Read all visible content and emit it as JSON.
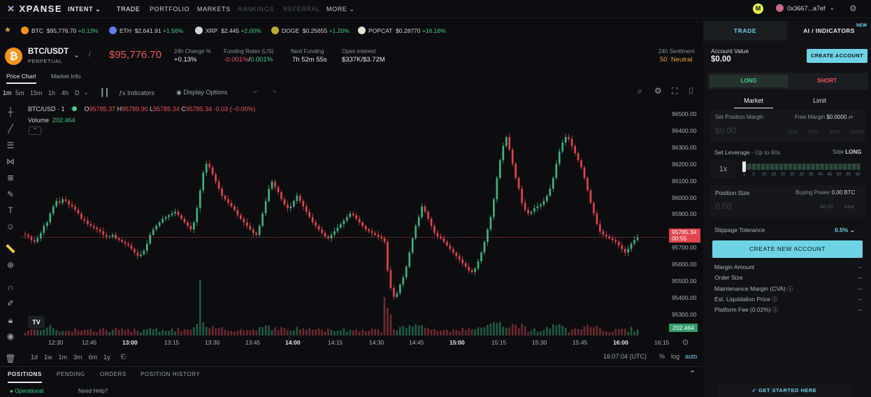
{
  "nav": {
    "logo": "XPANSE",
    "intent": "INTENT",
    "items": [
      "TRADE",
      "PORTFOLIO",
      "MARKETS",
      "RANKINGS",
      "REFERRAL",
      "MORE"
    ],
    "wallet": "0x3667...a7ef",
    "avatar_letter": "M"
  },
  "ticker": [
    {
      "sym": "BTC",
      "price": "$95,776.70",
      "chg": "+0.13%",
      "color": "#f7931a"
    },
    {
      "sym": "ETH",
      "price": "$2,641.91",
      "chg": "+1.56%",
      "color": "#627eea"
    },
    {
      "sym": "XRP",
      "price": "$2.445",
      "chg": "+2.00%",
      "color": "#cfd3da"
    },
    {
      "sym": "DOGE",
      "price": "$0.25655",
      "chg": "+1.20%",
      "color": "#c2a633"
    },
    {
      "sym": "POPCAT",
      "price": "$0.28770",
      "chg": "+16.16%",
      "color": "#e8e0d0"
    }
  ],
  "pair": {
    "name": "BTC/USDT",
    "type": "PERPETUAL",
    "price": "$95,776.70",
    "change_label": "24h Change %",
    "change": "+0.13%",
    "funding_label": "Funding Rates (L/S)",
    "funding_long": "-0.001%",
    "funding_short": "0.001%",
    "next_label": "Next Funding",
    "next": "7h 52m 55s",
    "oi_label": "Open Interest",
    "oi": "$337K/$3.72M",
    "sent_label": "24h Sentiment",
    "sent_value": "50",
    "sent_text": "Neutral"
  },
  "tabs": {
    "chart": "Price Chart",
    "market": "Market Info"
  },
  "toolbar": {
    "intervals": [
      "1m",
      "5m",
      "15m",
      "1h",
      "4h",
      "D"
    ],
    "indicators": "Indicators",
    "display": "Display Options"
  },
  "legend": {
    "symbol": "BTC/USD · 1",
    "o": "95785.37",
    "h": "95789.90",
    "l": "95785.34",
    "c": "95785.34",
    "chg": "-0.03 (−0.00%)",
    "volume_label": "Volume",
    "volume": "202.464"
  },
  "price_axis": [
    "96500.00",
    "96400.00",
    "96300.00",
    "96200.00",
    "96100.00",
    "96000.00",
    "95900.00",
    "95800.00",
    "95700.00",
    "95600.00",
    "95500.00",
    "95400.00",
    "95300.00"
  ],
  "time_axis": [
    "12:30",
    "12:45",
    "13:00",
    "13:15",
    "13:30",
    "13:45",
    "14:00",
    "14:15",
    "14:30",
    "14:45",
    "15:00",
    "15:15",
    "15:30",
    "15:45",
    "16:00",
    "16:15"
  ],
  "current_price": "95785.34",
  "countdown": "00:55",
  "volume_tag": "202.464",
  "ranges": [
    "1d",
    "1w",
    "1m",
    "3m",
    "6m",
    "1y"
  ],
  "clock": "16:07:04 (UTC)",
  "scale_opts": [
    "%",
    "log",
    "auto"
  ],
  "bottom_tabs": [
    "POSITIONS",
    "PENDING",
    "ORDERS",
    "POSITION HISTORY"
  ],
  "status": {
    "operational": "Operational",
    "help": "Need Help?"
  },
  "side": {
    "tab_trade": "TRADE",
    "tab_ai": "AI / INDICATORS",
    "new_badge": "NEW",
    "account_label": "Account Value",
    "account_value": "$0.00",
    "create_account": "CREATE ACCOUNT",
    "long": "LONG",
    "short": "SHORT",
    "market": "Market",
    "limit": "Limit",
    "margin_label": "Set Position Margin",
    "free_margin": "Free Margin",
    "free_margin_val": "$0.0000",
    "margin_placeholder": "$0.00",
    "pcts": [
      "10%",
      "25%",
      "50%",
      "100%"
    ],
    "leverage_label": "Set Leverage",
    "leverage_hint": "- Up to 60x",
    "side_label": "Side",
    "side_val": "LONG",
    "leverage_value": "1x",
    "lev_ticks": [
      "1",
      "5",
      "10",
      "15",
      "20",
      "25",
      "30",
      "35",
      "40",
      "45",
      "50",
      "55",
      "60"
    ],
    "size_label": "Position Size",
    "buying_power": "Buying Power",
    "buying_power_val": "0.00 BTC",
    "size_placeholder": "0.00",
    "size_usd": "-$0.00",
    "max": "Max",
    "slippage_label": "Slippage Tolerance",
    "slippage_val": "0.5%",
    "create_new": "CREATE NEW ACCOUNT",
    "details": [
      {
        "k": "Margin Amount",
        "v": "--"
      },
      {
        "k": "Order Size",
        "v": "--"
      },
      {
        "k": "Maintenance Margin (CVA)",
        "v": "--"
      },
      {
        "k": "Est. Liquidation Price",
        "v": "--"
      },
      {
        "k": "Platform Fee (0.02%)",
        "v": "--"
      }
    ],
    "get_started": "GET STARTED HERE"
  },
  "chart_data": {
    "type": "candlestick",
    "symbol": "BTC/USD",
    "interval": "1m",
    "y_range": [
      95240,
      96560
    ],
    "x_start": "12:23",
    "x_end": "16:07",
    "closes": [
      95800,
      95790,
      95770,
      95760,
      95780,
      95810,
      95850,
      95870,
      95920,
      95960,
      95990,
      95980,
      96000,
      95990,
      95970,
      95960,
      95940,
      95920,
      95890,
      95880,
      95860,
      95850,
      95840,
      95830,
      95820,
      95800,
      95790,
      95790,
      95800,
      95780,
      95770,
      95760,
      95750,
      95740,
      95720,
      95700,
      95680,
      95690,
      95710,
      95750,
      95800,
      95830,
      95850,
      95870,
      95890,
      95900,
      95910,
      95920,
      95930,
      95910,
      95890,
      95870,
      95850,
      95830,
      95870,
      95950,
      96050,
      96150,
      96200,
      96180,
      96140,
      96100,
      96060,
      96020,
      96000,
      95980,
      95960,
      95940,
      95910,
      95890,
      95870,
      95850,
      95830,
      95810,
      95800,
      95850,
      95920,
      95990,
      96060,
      96100,
      96070,
      96040,
      96000,
      95970,
      95950,
      95960,
      95990,
      96020,
      95990,
      95960,
      95930,
      95900,
      95870,
      95850,
      95830,
      95810,
      95790,
      95780,
      95800,
      95820,
      95840,
      95860,
      95880,
      95900,
      95920,
      95910,
      95890,
      95870,
      95850,
      95830,
      95820,
      95810,
      95800,
      95790,
      95780,
      95760,
      95600,
      95500,
      95450,
      95470,
      95520,
      95560,
      95620,
      95700,
      95780,
      95850,
      95900,
      95960,
      95930,
      95890,
      95850,
      95810,
      95790,
      95780,
      95760,
      95740,
      95720,
      95700,
      95680,
      95660,
      95640,
      95620,
      95600,
      95590,
      95610,
      95650,
      95700,
      95760,
      95830,
      95900,
      96000,
      96120,
      96220,
      96300,
      96350,
      96280,
      96200,
      96120,
      96060,
      95980,
      95940,
      95920,
      95930,
      95950,
      95960,
      95970,
      95990,
      96020,
      96060,
      96120,
      96200,
      96270,
      96320,
      96350,
      96340,
      96300,
      96260,
      96220,
      96180,
      96120,
      96050,
      95980,
      95920,
      95860,
      95820,
      95800,
      95790,
      95780,
      95770,
      95760,
      95740,
      95720,
      95700,
      95720,
      95750,
      95770,
      95785
    ]
  }
}
